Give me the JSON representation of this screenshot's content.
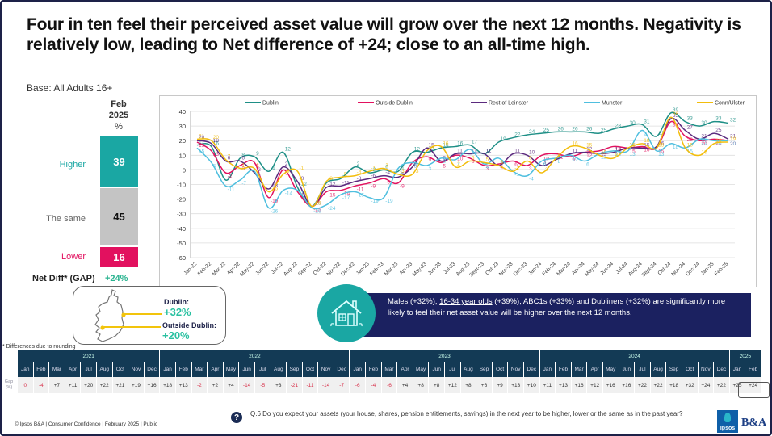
{
  "title": "Four in ten feel their perceived asset value will grow over the next 12 months. Negativity is relatively low, leading to Net difference of +24; close to an all-time high.",
  "base": "Base: All Adults 16+",
  "stack": {
    "header_line1": "Feb",
    "header_line2": "2025",
    "header_line3": "%",
    "higher_label": "Higher",
    "higher_value": "39",
    "same_label": "The same",
    "same_value": "45",
    "lower_label": "Lower",
    "lower_value": "16",
    "netdiff_label": "Net Diff* (GAP)",
    "netdiff_value": "+24%"
  },
  "map": {
    "dublin_label": "Dublin:",
    "dublin_value": "+32%",
    "outside_label": "Outside Dublin:",
    "outside_value": "+20%"
  },
  "insight": {
    "text_before": "Males (+32%), ",
    "underlined": "16-34 year olds",
    "text_after": " (+39%), ABC1s (+33%) and Dubliners (+32%) are significantly more likely to feel their net asset value will be higher over the next 12 months."
  },
  "rounding_note": "* Differences due to rounding",
  "gap_table": {
    "row_label": "Gap (%)",
    "years": [
      {
        "label": "2021",
        "span": 9
      },
      {
        "label": "2022",
        "span": 12
      },
      {
        "label": "2023",
        "span": 12
      },
      {
        "label": "2024",
        "span": 12
      },
      {
        "label": "2025",
        "span": 2
      }
    ],
    "months": [
      "Jan",
      "Feb",
      "Mar",
      "Apr",
      "Jul",
      "Aug",
      "Oct",
      "Nov",
      "Dec",
      "Jan",
      "Feb",
      "Mar",
      "Apr",
      "May",
      "Jun",
      "Jul",
      "Aug",
      "Sep",
      "Oct",
      "Nov",
      "Dec",
      "Jan",
      "Feb",
      "Mar",
      "Apr",
      "May",
      "Jun",
      "Jul",
      "Aug",
      "Sep",
      "Oct",
      "Nov",
      "Dec",
      "Jan",
      "Feb",
      "Mar",
      "Apr",
      "May",
      "Jun",
      "Jul",
      "Aug",
      "Sep",
      "Oct",
      "Nov",
      "Dec",
      "Jan",
      "Feb"
    ],
    "values": [
      "0",
      "-4",
      "+7",
      "+11",
      "+20",
      "+22",
      "+21",
      "+19",
      "+16",
      "+18",
      "+13",
      "-2",
      "+2",
      "+4",
      "-14",
      "-5",
      "+3",
      "-21",
      "-11",
      "-14",
      "-7",
      "-6",
      "-4",
      "-6",
      "+4",
      "+8",
      "+8",
      "+12",
      "+8",
      "+6",
      "+9",
      "+13",
      "+10",
      "+11",
      "+13",
      "+16",
      "+12",
      "+16",
      "+16",
      "+22",
      "+22",
      "+18",
      "+32",
      "+24",
      "+22",
      "+25",
      "+24"
    ]
  },
  "footer": {
    "copyright": "© Ipsos B&A | Consumer Confidence | February 2025 | Public",
    "question": "Q.6 Do you expect your assets (your house, shares, pension entitlements, savings) in the next year to be higher, lower or the same as in the past year?",
    "logo_ipsos": "Ipsos",
    "logo_ba": "B&A"
  },
  "chart_data": {
    "type": "line",
    "title": "",
    "xlabel": "",
    "ylabel": "",
    "ylim": [
      -60,
      40
    ],
    "yticks": [
      40,
      30,
      20,
      10,
      0,
      -10,
      -20,
      -30,
      -40,
      -50,
      -60
    ],
    "grid": true,
    "legend_position": "top",
    "x": [
      "Jan-22",
      "Feb-22",
      "Mar-22",
      "Apr-22",
      "May-22",
      "Jun-22",
      "Jul-22",
      "Aug-22",
      "Sep-22",
      "Oct-22",
      "Nov-22",
      "Dec-22",
      "Jan-23",
      "Feb-23",
      "Mar-23",
      "Apr-23",
      "May-23",
      "Jun-23",
      "Jul-23",
      "Aug-23",
      "Sept-23",
      "Oct-23",
      "Nov-23",
      "Dec-23",
      "Jan-24",
      "Feb-24",
      "Mar-24",
      "Apr-24",
      "May-24",
      "Jun-24",
      "Jul-24",
      "Aug-24",
      "Sept-24",
      "Oct-24",
      "Nov-24",
      "Dec-24",
      "Jan-25",
      "Feb-25"
    ],
    "series": [
      {
        "name": "Dublin",
        "color": "#1e8f86",
        "values": [
          17,
          16,
          -7,
          8,
          9,
          -1,
          12,
          -12,
          -25,
          -9,
          -6,
          2,
          -2,
          0,
          -1,
          12,
          12,
          15,
          16,
          17,
          11,
          19,
          22,
          24,
          25,
          26,
          26,
          26,
          25,
          28,
          30,
          31,
          23,
          39,
          33,
          30,
          33,
          32
        ]
      },
      {
        "name": "Outside Dublin",
        "color": "#e2115f",
        "values": [
          19,
          13,
          -2,
          3,
          5,
          -19,
          0,
          -15,
          -25,
          -15,
          -14,
          -11,
          -9,
          -6,
          -9,
          5,
          9,
          5,
          10,
          8,
          3,
          4,
          6,
          3,
          10,
          11,
          9,
          12,
          13,
          16,
          15,
          16,
          15,
          33,
          23,
          20,
          21,
          20
        ]
      },
      {
        "name": "Rest of Leinster",
        "color": "#5b2a7e",
        "values": [
          20,
          18,
          6,
          6,
          -2,
          -13,
          2,
          -8,
          -25,
          -12,
          -11,
          -8,
          -6,
          -4,
          -5,
          2,
          15,
          6,
          11,
          11,
          11,
          3,
          11,
          10,
          3,
          7,
          11,
          12,
          11,
          12,
          15,
          15,
          16,
          35,
          27,
          21,
          25,
          21
        ]
      },
      {
        "name": "Munster",
        "color": "#4fbfdf",
        "values": [
          15,
          5,
          -11,
          -7,
          -1,
          -26,
          -14,
          -14,
          -26,
          -24,
          -17,
          -15,
          -19,
          -19,
          1,
          5,
          3,
          8,
          7,
          14,
          4,
          8,
          -1,
          -4,
          6,
          8,
          10,
          6,
          11,
          13,
          13,
          27,
          13,
          18,
          15,
          21,
          20,
          20
        ]
      },
      {
        "name": "Conn/Ulster",
        "color": "#f2bd0c",
        "values": [
          21,
          20,
          7,
          1,
          1,
          -15,
          -3,
          -1,
          -25,
          -8,
          -5,
          -4,
          -1,
          1,
          -3,
          -3,
          13,
          16,
          2,
          6,
          5,
          3,
          -1,
          6,
          -2,
          8,
          16,
          15,
          10,
          8,
          15,
          18,
          15,
          36,
          15,
          10,
          18,
          19
        ]
      }
    ]
  }
}
